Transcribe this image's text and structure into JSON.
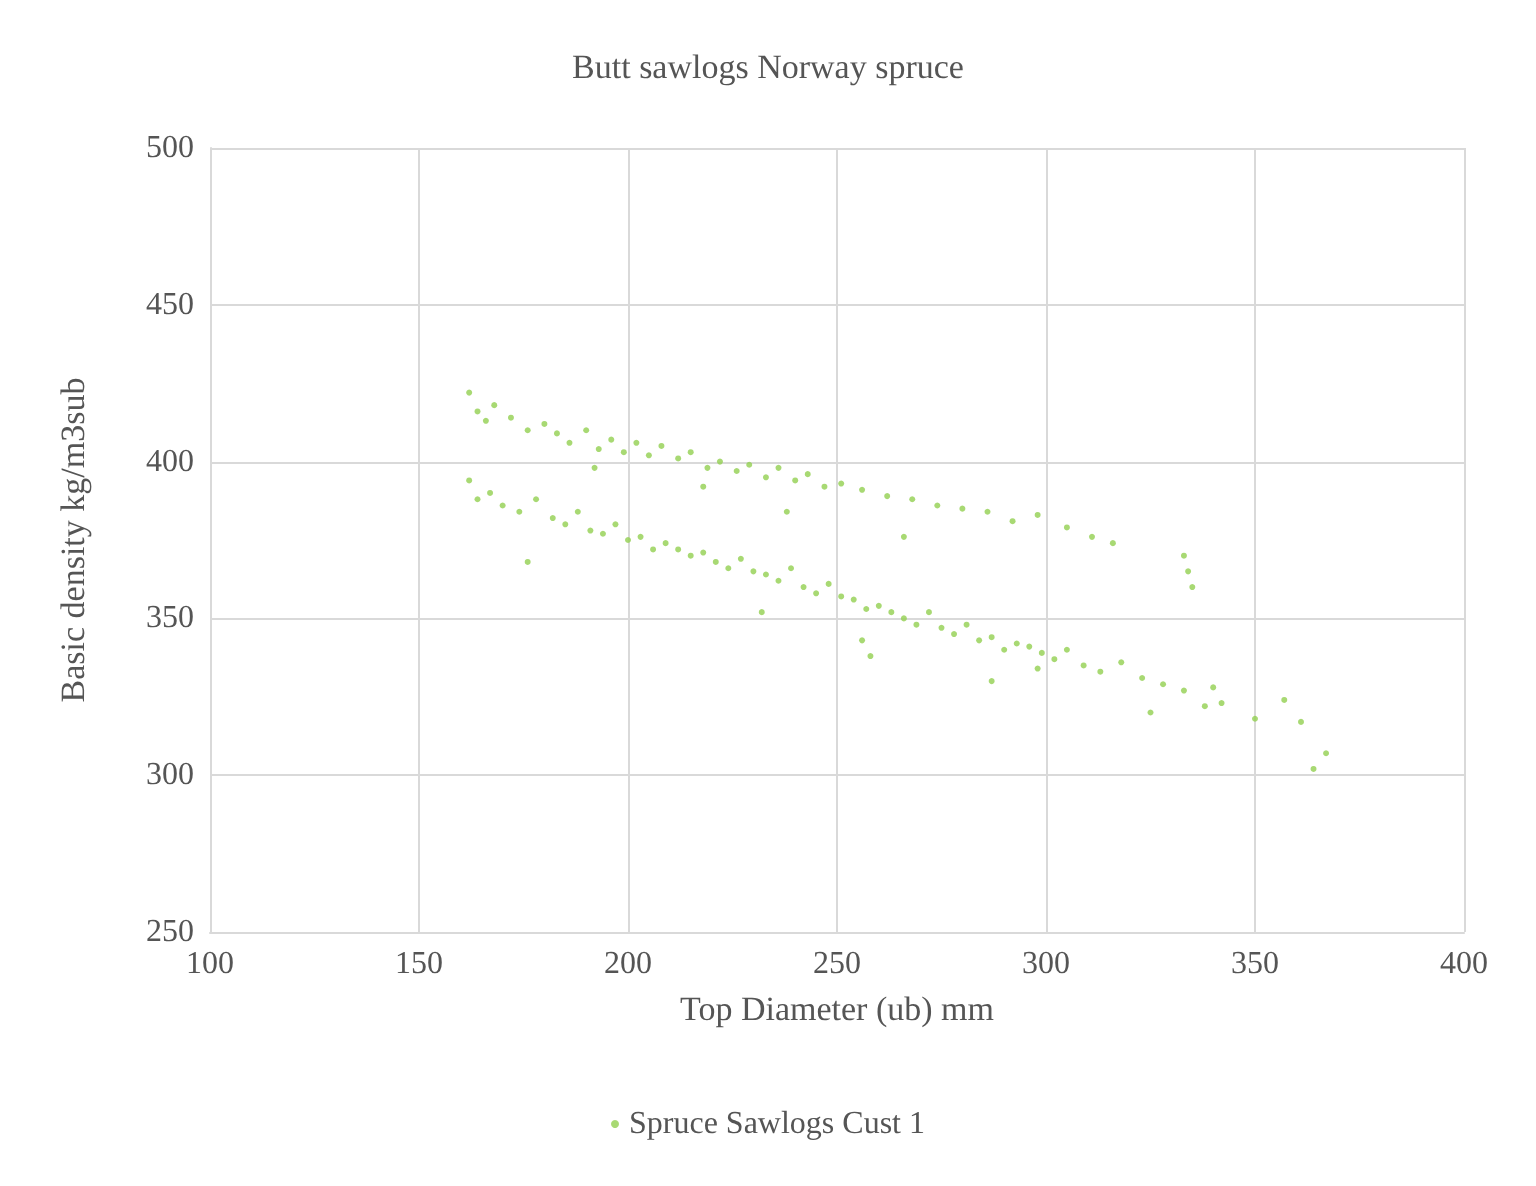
{
  "chart_data": {
    "type": "scatter",
    "title": "Butt sawlogs Norway spruce",
    "xlabel": "Top Diameter (ub) mm",
    "ylabel": "Basic density kg/m3sub",
    "xlim": [
      100,
      400
    ],
    "xticks": [
      100,
      150,
      200,
      250,
      300,
      350,
      400
    ],
    "ylim": [
      250,
      500
    ],
    "yticks": [
      250,
      300,
      350,
      400,
      450,
      500
    ],
    "grid": true,
    "legend": "bottom",
    "marker": "circle",
    "series": [
      {
        "name": "Spruce Sawlogs Cust 1",
        "color": "#92d050",
        "x": [
          162,
          164,
          166,
          168,
          172,
          176,
          180,
          183,
          186,
          190,
          193,
          196,
          199,
          202,
          205,
          208,
          212,
          215,
          219,
          222,
          226,
          229,
          233,
          236,
          240,
          243,
          247,
          251,
          256,
          262,
          268,
          274,
          280,
          286,
          292,
          298,
          305,
          311,
          316,
          333,
          334,
          335,
          162,
          164,
          167,
          170,
          174,
          178,
          182,
          185,
          188,
          191,
          194,
          197,
          200,
          203,
          206,
          209,
          212,
          215,
          218,
          221,
          224,
          227,
          230,
          233,
          236,
          239,
          242,
          245,
          248,
          251,
          254,
          257,
          260,
          263,
          266,
          269,
          272,
          275,
          278,
          281,
          284,
          287,
          290,
          293,
          296,
          299,
          302,
          305,
          309,
          313,
          318,
          323,
          328,
          333,
          338,
          342,
          350,
          357,
          361,
          364,
          367,
          192,
          218,
          238,
          266,
          258,
          232,
          176,
          287,
          325,
          340,
          298,
          256
        ],
        "values": [
          422,
          416,
          413,
          418,
          414,
          410,
          412,
          409,
          406,
          410,
          404,
          407,
          403,
          406,
          402,
          405,
          401,
          403,
          398,
          400,
          397,
          399,
          395,
          398,
          394,
          396,
          392,
          393,
          391,
          389,
          388,
          386,
          385,
          384,
          381,
          383,
          379,
          376,
          374,
          370,
          365,
          360,
          394,
          388,
          390,
          386,
          384,
          388,
          382,
          380,
          384,
          378,
          377,
          380,
          375,
          376,
          372,
          374,
          372,
          370,
          371,
          368,
          366,
          369,
          365,
          364,
          362,
          366,
          360,
          358,
          361,
          357,
          356,
          353,
          354,
          352,
          350,
          348,
          352,
          347,
          345,
          348,
          343,
          344,
          340,
          342,
          341,
          339,
          337,
          340,
          335,
          333,
          336,
          331,
          329,
          327,
          322,
          323,
          318,
          324,
          317,
          302,
          307,
          398,
          392,
          384,
          376,
          338,
          352,
          368,
          330,
          320,
          328,
          334,
          343
        ]
      }
    ]
  }
}
